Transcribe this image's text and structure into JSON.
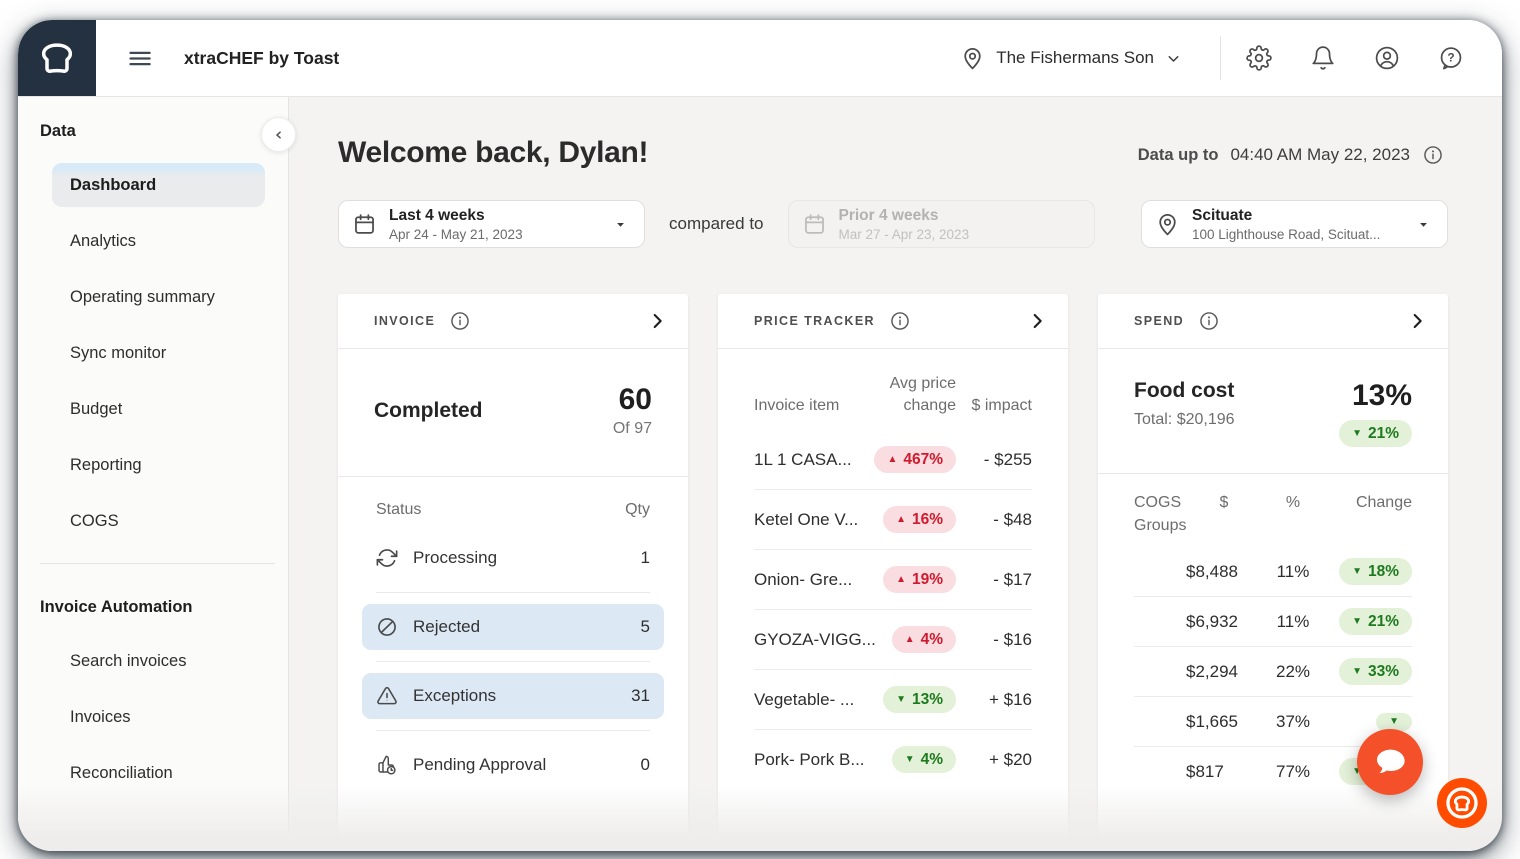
{
  "colors": {
    "brand_navy": "#233140",
    "brand_orange": "#ff4c00",
    "chat_orange": "#f4502a",
    "pill_up_bg": "#fadde1",
    "pill_up_text": "#cf1b2e",
    "pill_down_bg": "#e4f1d9",
    "pill_down_text": "#1e7a1e",
    "row_highlight": "#dce8f4",
    "selected_item_blue": "#d8e9f8"
  },
  "topbar": {
    "title": "xtraCHEF by Toast",
    "location_label": "The Fishermans Son",
    "icons": [
      "settings-icon",
      "notifications-icon",
      "account-icon",
      "help-icon"
    ]
  },
  "sidebar": {
    "sections": [
      {
        "title": "Data",
        "items": [
          {
            "label": "Dashboard",
            "selected": true
          },
          {
            "label": "Analytics",
            "selected": false
          },
          {
            "label": "Operating summary",
            "selected": false
          },
          {
            "label": "Sync monitor",
            "selected": false
          },
          {
            "label": "Budget",
            "selected": false
          },
          {
            "label": "Reporting",
            "selected": false
          },
          {
            "label": "COGS",
            "selected": false
          }
        ]
      },
      {
        "title": "Invoice Automation",
        "items": [
          {
            "label": "Search invoices",
            "selected": false
          },
          {
            "label": "Invoices",
            "selected": false
          },
          {
            "label": "Reconciliation",
            "selected": false
          }
        ]
      }
    ]
  },
  "main": {
    "welcome": "Welcome back, Dylan!",
    "data_up_to_label": "Data up to",
    "data_up_to_value": "04:40 AM May 22, 2023",
    "filters": {
      "primary_range": {
        "label": "Last 4 weeks",
        "dates": "Apr 24 - May 21, 2023"
      },
      "compared_to": "compared to",
      "secondary_range": {
        "label": "Prior 4 weeks",
        "dates": "Mar 27 - Apr 23, 2023",
        "disabled": true
      },
      "location": {
        "name": "Scituate",
        "address": "100 Lighthouse Road, Scituat..."
      }
    }
  },
  "cards": {
    "invoice": {
      "title": "INVOICE",
      "completed_label": "Completed",
      "completed_value": "60",
      "completed_of": "Of 97",
      "table": {
        "col1": "Status",
        "col2": "Qty",
        "rows": [
          {
            "icon": "sync-icon",
            "label": "Processing",
            "qty": "1",
            "highlight": false
          },
          {
            "icon": "rejected-icon",
            "label": "Rejected",
            "qty": "5",
            "highlight": true
          },
          {
            "icon": "exceptions-icon",
            "label": "Exceptions",
            "qty": "31",
            "highlight": true
          },
          {
            "icon": "pending-approval-icon",
            "label": "Pending Approval",
            "qty": "0",
            "highlight": false
          }
        ]
      }
    },
    "price_tracker": {
      "title": "PRICE TRACKER",
      "columns": [
        "Invoice item",
        "Avg price change",
        "$ impact"
      ],
      "rows": [
        {
          "item": "1L 1 CASA...",
          "change": "467%",
          "direction": "up",
          "impact": "- $255"
        },
        {
          "item": "Ketel One V...",
          "change": "16%",
          "direction": "up",
          "impact": "- $48"
        },
        {
          "item": "Onion- Gre...",
          "change": "19%",
          "direction": "up",
          "impact": "- $17"
        },
        {
          "item": "GYOZA-VIGG...",
          "change": "4%",
          "direction": "up",
          "impact": "- $16"
        },
        {
          "item": "Vegetable- ...",
          "change": "13%",
          "direction": "down",
          "impact": "+ $16"
        },
        {
          "item": "Pork- Pork B...",
          "change": "4%",
          "direction": "down",
          "impact": "+ $20"
        }
      ]
    },
    "spend": {
      "title": "SPEND",
      "food_cost_label": "Food cost",
      "food_cost_total": "Total: $20,196",
      "food_cost_pct": "13%",
      "food_cost_change": {
        "value": "21%",
        "direction": "down"
      },
      "columns": [
        "COGS Groups",
        "$",
        "%",
        "Change"
      ],
      "rows": [
        {
          "dollars": "$8,488",
          "pct": "11%",
          "change": "18%",
          "direction": "down"
        },
        {
          "dollars": "$6,932",
          "pct": "11%",
          "change": "21%",
          "direction": "down"
        },
        {
          "dollars": "$2,294",
          "pct": "22%",
          "change": "33%",
          "direction": "down"
        },
        {
          "dollars": "$1,665",
          "pct": "37%",
          "change": "",
          "direction": "down"
        },
        {
          "dollars": "$817",
          "pct": "77%",
          "change": "32%",
          "direction": "down"
        }
      ]
    }
  }
}
